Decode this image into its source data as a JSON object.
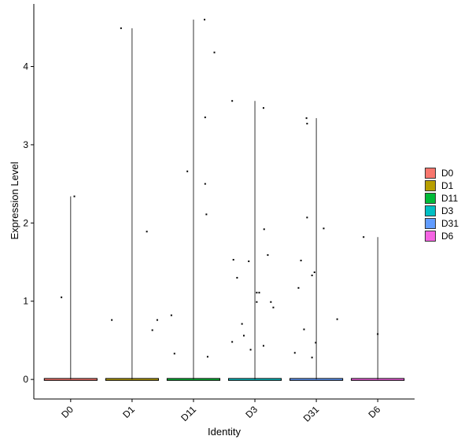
{
  "chart_data": {
    "type": "violin",
    "xlabel": "Identity",
    "ylabel": "Expression Level",
    "categories": [
      "D0",
      "D1",
      "D11",
      "D3",
      "D31",
      "D6"
    ],
    "colors": {
      "D0": "#F8766D",
      "D1": "#B79F00",
      "D11": "#00BA38",
      "D3": "#00BFC4",
      "D31": "#619CFF",
      "D6": "#F564E3"
    },
    "yticks": [
      0,
      1,
      2,
      3,
      4
    ],
    "ylim": [
      -0.25,
      4.8
    ],
    "grid": false,
    "legend_position": "right",
    "legend": [
      "D0",
      "D1",
      "D11",
      "D3",
      "D31",
      "D6"
    ],
    "series": [
      {
        "category": "D0",
        "max": 2.34,
        "points": [
          [
            -0.15,
            1.05
          ],
          [
            0.06,
            2.34
          ]
        ]
      },
      {
        "category": "D1",
        "max": 4.49,
        "points": [
          [
            -0.18,
            4.49
          ],
          [
            -0.33,
            0.76
          ],
          [
            0.24,
            1.89
          ],
          [
            0.33,
            0.63
          ],
          [
            0.41,
            0.76
          ]
        ]
      },
      {
        "category": "D11",
        "max": 4.6,
        "points": [
          [
            -0.36,
            0.82
          ],
          [
            -0.31,
            0.33
          ],
          [
            -0.1,
            2.66
          ],
          [
            0.18,
            4.6
          ],
          [
            0.19,
            3.35
          ],
          [
            0.19,
            2.5
          ],
          [
            0.21,
            2.11
          ],
          [
            0.23,
            0.29
          ],
          [
            0.34,
            4.18
          ]
        ]
      },
      {
        "category": "D3",
        "max": 3.56,
        "points": [
          [
            -0.37,
            3.56
          ],
          [
            -0.35,
            1.53
          ],
          [
            -0.37,
            0.48
          ],
          [
            -0.29,
            1.3
          ],
          [
            -0.21,
            0.71
          ],
          [
            -0.18,
            0.56
          ],
          [
            -0.1,
            1.51
          ],
          [
            -0.07,
            0.38
          ],
          [
            0.03,
            1.11
          ],
          [
            0.03,
            0.99
          ],
          [
            0.07,
            1.11
          ],
          [
            0.14,
            3.47
          ],
          [
            0.15,
            1.92
          ],
          [
            0.14,
            0.43
          ],
          [
            0.21,
            1.59
          ],
          [
            0.26,
            0.99
          ],
          [
            0.3,
            0.92
          ]
        ]
      },
      {
        "category": "D31",
        "max": 3.34,
        "points": [
          [
            -0.35,
            0.34
          ],
          [
            -0.29,
            1.17
          ],
          [
            -0.25,
            1.52
          ],
          [
            -0.2,
            0.64
          ],
          [
            -0.16,
            3.34
          ],
          [
            -0.15,
            3.27
          ],
          [
            -0.15,
            2.07
          ],
          [
            -0.07,
            1.33
          ],
          [
            -0.07,
            0.28
          ],
          [
            -0.03,
            1.37
          ],
          [
            -0.01,
            0.47
          ],
          [
            0.12,
            1.93
          ],
          [
            0.34,
            0.77
          ]
        ]
      },
      {
        "category": "D6",
        "max": 1.82,
        "points": [
          [
            -0.23,
            1.82
          ],
          [
            0.0,
            0.58
          ]
        ]
      }
    ]
  }
}
